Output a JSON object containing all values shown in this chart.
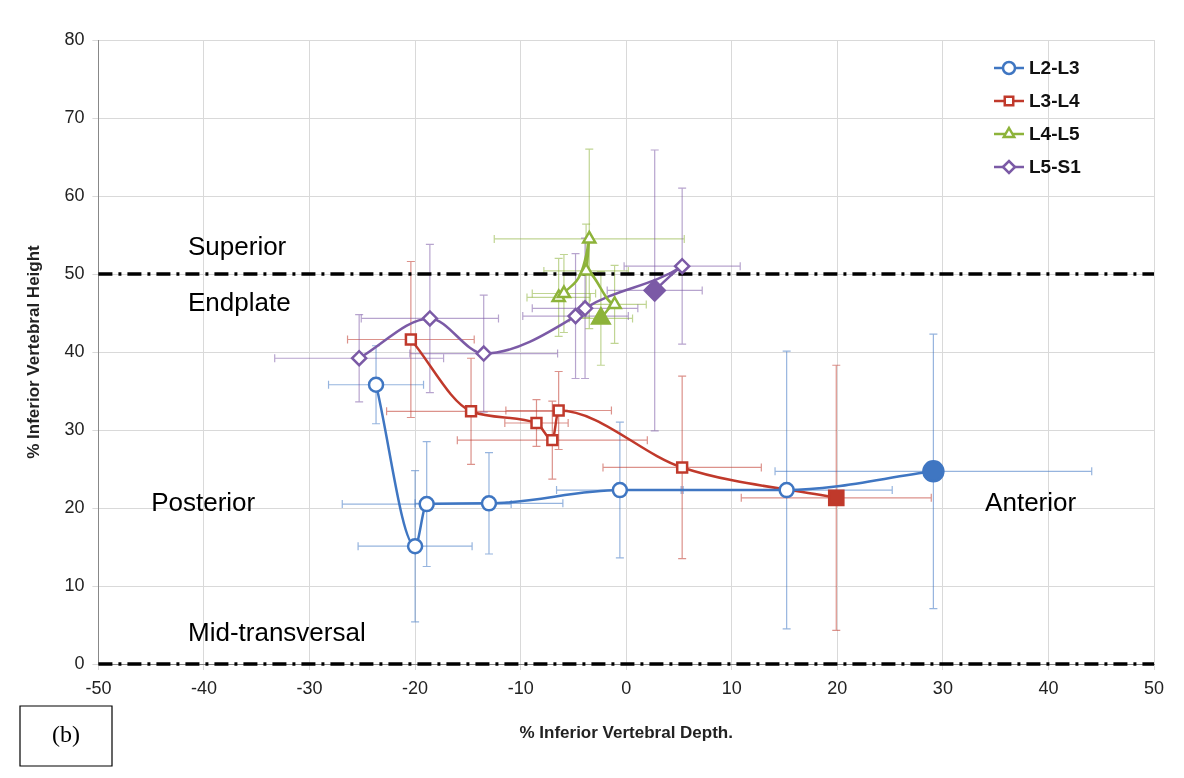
{
  "chart_data": {
    "type": "line",
    "xlabel": "% Inferior Vertebral Depth.",
    "ylabel": "% Inferior Vertebral Height",
    "xlim": [
      -50,
      50
    ],
    "xticks": [
      -50,
      -40,
      -30,
      -20,
      -10,
      0,
      10,
      20,
      30,
      40,
      50
    ],
    "ylim": [
      0,
      80
    ],
    "yticks": [
      0,
      10,
      20,
      30,
      40,
      50,
      60,
      70,
      80
    ],
    "grid": true,
    "legend": "top right",
    "series": [
      {
        "name": "L2-L3",
        "color": "#3f76c2",
        "marker": "circle",
        "x": [
          -23.7,
          -20.0,
          -18.9,
          -13.0,
          -0.6,
          15.2,
          29.1
        ],
        "values": [
          35.8,
          15.1,
          20.5,
          20.6,
          22.3,
          22.3,
          24.7
        ],
        "errors": [
          5,
          9.7,
          8,
          6.5,
          8.7,
          17.8,
          17.6
        ],
        "xerrors": [
          4.5,
          5.4,
          8,
          7,
          6,
          10,
          15
        ]
      },
      {
        "name": "L3-L4",
        "color": "#c0392b",
        "marker": "square",
        "x": [
          -20.4,
          -14.7,
          -8.5,
          -7.0,
          -6.4,
          5.3,
          19.9
        ],
        "values": [
          41.6,
          32.4,
          30.9,
          28.7,
          32.5,
          25.2,
          21.3
        ],
        "errors": [
          10,
          6.8,
          3,
          5,
          5,
          11.7,
          17
        ],
        "xerrors": [
          6,
          8,
          3,
          9,
          5,
          7.5,
          9
        ]
      },
      {
        "name": "L4-L5",
        "color": "#8db33a",
        "marker": "triangle",
        "x": [
          -6.4,
          -5.9,
          -3.5,
          -3.8,
          -1.1,
          -2.4
        ],
        "values": [
          47.0,
          47.5,
          54.5,
          50.4,
          46.1,
          44.3
        ],
        "errors": [
          5,
          5,
          11.5,
          6,
          5,
          6
        ],
        "xerrors": [
          3,
          3,
          9,
          4,
          3,
          3
        ]
      },
      {
        "name": "L5-S1",
        "color": "#7b5aa6",
        "marker": "diamond",
        "x": [
          -25.3,
          -18.6,
          -13.5,
          -4.8,
          -3.9,
          5.3,
          2.7
        ],
        "values": [
          39.2,
          44.3,
          39.8,
          44.6,
          45.6,
          51.0,
          47.9
        ],
        "errors": [
          5.6,
          9.5,
          7.5,
          8,
          9,
          10,
          18
        ],
        "xerrors": [
          8,
          6.5,
          7,
          5,
          5,
          5.5,
          4.5
        ]
      }
    ],
    "ref_lines": [
      {
        "axis": "y",
        "value": 50,
        "label": "Superior Endplate",
        "color": "#000000",
        "line_style": "dashdot"
      },
      {
        "axis": "y",
        "value": 0,
        "label": "Mid-transversal",
        "color": "#000000",
        "line_style": "dashdot"
      }
    ],
    "annotations": [
      "Posterior",
      "Anterior",
      "(b)"
    ]
  }
}
